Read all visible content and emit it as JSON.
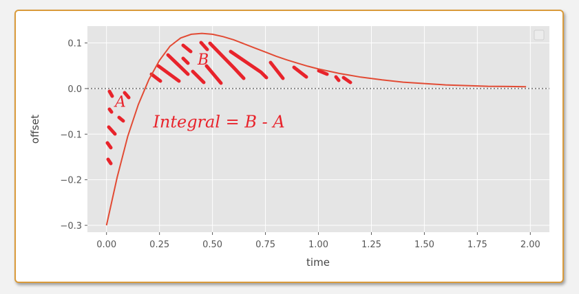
{
  "chart_data": {
    "type": "line",
    "title": "",
    "xlabel": "time",
    "ylabel": "offset",
    "xlim": [
      -0.09,
      2.09
    ],
    "ylim": [
      -0.315,
      0.137
    ],
    "x_ticks": [
      0.0,
      0.25,
      0.5,
      0.75,
      1.0,
      1.25,
      1.5,
      1.75,
      2.0
    ],
    "x_tick_labels": [
      "0.00",
      "0.25",
      "0.50",
      "0.75",
      "1.00",
      "1.25",
      "1.50",
      "1.75",
      "2.00"
    ],
    "y_ticks": [
      0.1,
      0.0,
      -0.1,
      -0.2,
      -0.3
    ],
    "y_tick_labels": [
      "0.1",
      "0.0",
      "−0.1",
      "−0.2",
      "−0.3"
    ],
    "grid": true,
    "legend": "top-right (empty)",
    "zero_line": {
      "y": 0.0,
      "style": "dotted",
      "color": "#888888"
    },
    "series": [
      {
        "color": "#e24a33",
        "x": [
          0.0,
          0.05,
          0.1,
          0.15,
          0.2,
          0.25,
          0.3,
          0.35,
          0.4,
          0.45,
          0.5,
          0.55,
          0.6,
          0.65,
          0.7,
          0.75,
          0.8,
          0.85,
          0.9,
          0.95,
          1.0,
          1.1,
          1.2,
          1.3,
          1.4,
          1.5,
          1.6,
          1.7,
          1.8,
          1.9,
          1.98
        ],
        "y": [
          -0.3,
          -0.195,
          -0.105,
          -0.035,
          0.02,
          0.062,
          0.093,
          0.111,
          0.119,
          0.121,
          0.119,
          0.114,
          0.107,
          0.098,
          0.089,
          0.08,
          0.071,
          0.063,
          0.056,
          0.049,
          0.043,
          0.033,
          0.025,
          0.019,
          0.014,
          0.011,
          0.008,
          0.0065,
          0.005,
          0.0045,
          0.004
        ]
      }
    ],
    "annotations": [
      {
        "text": "A",
        "x": 0.04,
        "y": -0.04
      },
      {
        "text": "B",
        "x": 0.43,
        "y": 0.053
      },
      {
        "text": "Integral = B - A",
        "x": 0.22,
        "y": -0.085
      }
    ],
    "colors": {
      "plot_background": "#e5e5e5",
      "grid": "#ffffff",
      "annotation": "#e8232b",
      "frame": "#d99a3a"
    }
  }
}
